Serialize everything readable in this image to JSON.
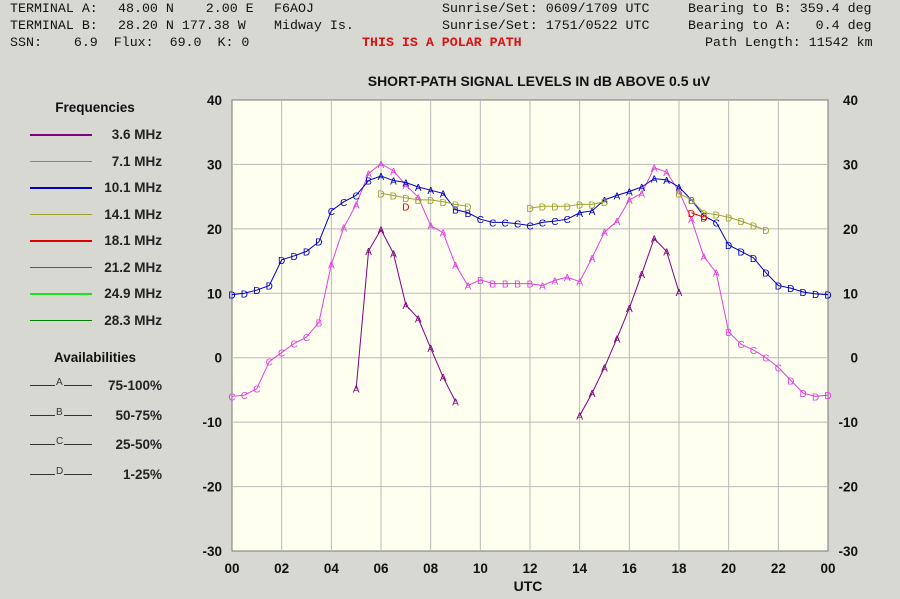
{
  "header": {
    "terminal_a": "TERMINAL A:",
    "terminal_a_coords": "48.00 N    2.00 E",
    "terminal_a_call": "F6AOJ",
    "terminal_a_sun": "Sunrise/Set: 0609/1709 UTC",
    "terminal_a_bearing": "Bearing to B: 359.4 deg",
    "terminal_b": "TERMINAL B:",
    "terminal_b_coords": "28.20 N 177.38 W",
    "terminal_b_name": "Midway Is.",
    "terminal_b_sun": "Sunrise/Set: 1751/0522 UTC",
    "terminal_b_bearing": "Bearing to A:   0.4 deg",
    "ssn": "SSN:    6.9  Flux:  69.0  K: 0",
    "polar_warning": "THIS IS A POLAR PATH",
    "path_length": "Path Length: 11542 km"
  },
  "legend": {
    "frequencies_title": "Frequencies",
    "frequencies": [
      {
        "label": "3.6 MHz",
        "color": "#800080"
      },
      {
        "label": "7.1 MHz",
        "color": "#e040e0"
      },
      {
        "label": "10.1 MHz",
        "color": "#0000c0"
      },
      {
        "label": "14.1 MHz",
        "color": "#a0a030"
      },
      {
        "label": "18.1 MHz",
        "color": "#e00000"
      },
      {
        "label": "21.2 MHz",
        "color": "#008080"
      },
      {
        "label": "24.9 MHz",
        "color": "#20e020"
      },
      {
        "label": "28.3 MHz",
        "color": "#008000"
      }
    ],
    "availabilities_title": "Availabilities",
    "availabilities": [
      {
        "letter": "A",
        "label": "75-100%"
      },
      {
        "letter": "B",
        "label": "50-75%"
      },
      {
        "letter": "C",
        "label": "25-50%"
      },
      {
        "letter": "D",
        "label": "1-25%"
      }
    ]
  },
  "chart_data": {
    "type": "line",
    "title": "SHORT-PATH SIGNAL LEVELS IN dB ABOVE 0.5 uV",
    "xlabel": "UTC",
    "ylabel": "",
    "xlim": [
      0,
      24
    ],
    "ylim": [
      -30,
      40
    ],
    "x_ticks": [
      "00",
      "02",
      "04",
      "06",
      "08",
      "10",
      "12",
      "14",
      "16",
      "18",
      "20",
      "22",
      "00"
    ],
    "y_ticks": [
      40,
      30,
      20,
      10,
      0,
      -10,
      -20,
      -30
    ],
    "grid": true,
    "background": "#fffff0",
    "series": [
      {
        "name": "3.6 MHz",
        "color": "#800080",
        "segments": [
          [
            [
              5.0,
              -4.8,
              "A"
            ],
            [
              5.5,
              16.6,
              "A"
            ],
            [
              6.0,
              19.9,
              "A"
            ],
            [
              6.5,
              16.2,
              "A"
            ],
            [
              7.0,
              8.2,
              "A"
            ],
            [
              7.5,
              6.1,
              "A"
            ],
            [
              8.0,
              1.5,
              "A"
            ],
            [
              8.5,
              -3.0,
              "A"
            ],
            [
              9.0,
              -6.8,
              "A"
            ]
          ],
          [
            [
              14.0,
              -9.0,
              "A"
            ],
            [
              14.5,
              -5.5,
              "A"
            ],
            [
              15.0,
              -1.5,
              "A"
            ],
            [
              15.5,
              3.0,
              "A"
            ],
            [
              16.0,
              7.7,
              "A"
            ],
            [
              16.5,
              13.0,
              "A"
            ],
            [
              17.0,
              18.5,
              "A"
            ],
            [
              17.5,
              16.5,
              "A"
            ],
            [
              18.0,
              10.2,
              "A"
            ]
          ]
        ]
      },
      {
        "name": "7.1 MHz",
        "color": "#e040e0",
        "segments": [
          [
            [
              0.0,
              -6.0,
              "C"
            ],
            [
              0.5,
              -5.8,
              "C"
            ],
            [
              1.0,
              -4.8,
              "C"
            ],
            [
              1.5,
              -0.6,
              "C"
            ],
            [
              2.0,
              0.8,
              "C"
            ],
            [
              2.5,
              2.2,
              "C"
            ],
            [
              3.0,
              3.2,
              "C"
            ],
            [
              3.5,
              5.5,
              "B"
            ],
            [
              4.0,
              14.5,
              "A"
            ],
            [
              4.5,
              20.2,
              "A"
            ],
            [
              5.0,
              23.8,
              "A"
            ],
            [
              5.5,
              28.6,
              "A"
            ],
            [
              6.0,
              30.1,
              "A"
            ],
            [
              6.5,
              29.0,
              "A"
            ],
            [
              7.0,
              26.8,
              "A"
            ],
            [
              7.5,
              24.9,
              "A"
            ],
            [
              8.0,
              20.5,
              "A"
            ],
            [
              8.5,
              19.4,
              "A"
            ],
            [
              9.0,
              14.4,
              "A"
            ],
            [
              9.5,
              11.2,
              "A"
            ],
            [
              10.0,
              12.1,
              "B"
            ],
            [
              10.5,
              11.5,
              "B"
            ],
            [
              11.0,
              11.5,
              "B"
            ],
            [
              11.5,
              11.5,
              "B"
            ],
            [
              12.0,
              11.5,
              "B"
            ],
            [
              12.5,
              11.2,
              "A"
            ],
            [
              13.0,
              12.0,
              "A"
            ],
            [
              13.5,
              12.5,
              "A"
            ],
            [
              14.0,
              11.8,
              "A"
            ],
            [
              14.5,
              15.5,
              "A"
            ],
            [
              15.0,
              19.5,
              "A"
            ],
            [
              15.5,
              21.2,
              "A"
            ],
            [
              16.0,
              24.5,
              "A"
            ],
            [
              16.5,
              25.5,
              "A"
            ],
            [
              17.0,
              29.5,
              "A"
            ],
            [
              17.5,
              28.8,
              "A"
            ],
            [
              18.0,
              25.8,
              "A"
            ],
            [
              18.5,
              21.5,
              "A"
            ],
            [
              19.0,
              15.7,
              "A"
            ],
            [
              19.5,
              13.2,
              "A"
            ],
            [
              20.0,
              4.0,
              "B"
            ],
            [
              20.5,
              2.1,
              "C"
            ],
            [
              21.0,
              1.2,
              "C"
            ],
            [
              21.5,
              0.0,
              "C"
            ],
            [
              22.0,
              -1.5,
              "C"
            ],
            [
              22.5,
              -3.5,
              "D"
            ],
            [
              23.0,
              -5.5,
              "D"
            ],
            [
              23.5,
              -6.0,
              "D"
            ],
            [
              24.0,
              -5.8,
              "D"
            ]
          ]
        ]
      },
      {
        "name": "10.1 MHz",
        "color": "#0000c0",
        "segments": [
          [
            [
              0.0,
              9.8,
              "D"
            ],
            [
              0.5,
              10.0,
              "D"
            ],
            [
              1.0,
              10.5,
              "D"
            ],
            [
              1.5,
              11.2,
              "D"
            ],
            [
              2.0,
              15.2,
              "D"
            ],
            [
              2.5,
              15.8,
              "D"
            ],
            [
              3.0,
              16.5,
              "D"
            ],
            [
              3.5,
              18.0,
              "D"
            ],
            [
              4.0,
              22.8,
              "C"
            ],
            [
              4.5,
              24.2,
              "C"
            ],
            [
              5.0,
              25.2,
              "C"
            ],
            [
              5.5,
              27.5,
              "B"
            ],
            [
              6.0,
              28.2,
              "A"
            ],
            [
              6.5,
              27.5,
              "A"
            ],
            [
              7.0,
              27.2,
              "A"
            ],
            [
              7.5,
              26.5,
              "A"
            ],
            [
              8.0,
              26.0,
              "A"
            ],
            [
              8.5,
              25.5,
              "A"
            ],
            [
              9.0,
              23.0,
              "B"
            ],
            [
              9.5,
              22.5,
              "B"
            ],
            [
              10.0,
              21.5,
              "C"
            ],
            [
              10.5,
              21.0,
              "C"
            ],
            [
              11.0,
              21.0,
              "C"
            ],
            [
              11.5,
              20.8,
              "C"
            ],
            [
              12.0,
              20.5,
              "C"
            ],
            [
              12.5,
              21.0,
              "C"
            ],
            [
              13.0,
              21.2,
              "C"
            ],
            [
              13.5,
              21.5,
              "C"
            ],
            [
              14.0,
              22.5,
              "A"
            ],
            [
              14.5,
              22.8,
              "A"
            ],
            [
              15.0,
              24.5,
              "A"
            ],
            [
              15.5,
              25.2,
              "A"
            ],
            [
              16.0,
              25.8,
              "A"
            ],
            [
              16.5,
              26.5,
              "A"
            ],
            [
              17.0,
              27.8,
              "A"
            ],
            [
              17.5,
              27.6,
              "A"
            ],
            [
              18.0,
              26.5,
              "A"
            ],
            [
              18.5,
              24.5,
              "B"
            ],
            [
              19.0,
              22.0,
              "C"
            ],
            [
              19.5,
              21.0,
              "C"
            ],
            [
              20.0,
              17.5,
              "D"
            ],
            [
              20.5,
              16.5,
              "D"
            ],
            [
              21.0,
              15.5,
              "D"
            ],
            [
              21.5,
              13.2,
              "D"
            ],
            [
              22.0,
              11.2,
              "D"
            ],
            [
              22.5,
              10.8,
              "D"
            ],
            [
              23.0,
              10.2,
              "D"
            ],
            [
              23.5,
              9.9,
              "D"
            ],
            [
              24.0,
              9.8,
              "D"
            ]
          ]
        ]
      },
      {
        "name": "14.1 MHz",
        "color": "#a0a030",
        "segments": [
          [
            [
              6.0,
              25.5,
              "D"
            ],
            [
              6.5,
              25.2,
              "D"
            ],
            [
              7.0,
              24.8,
              "D"
            ],
            [
              7.5,
              24.5,
              "D"
            ],
            [
              8.0,
              24.5,
              "D"
            ],
            [
              8.5,
              24.2,
              "D"
            ],
            [
              9.0,
              23.8,
              "D"
            ],
            [
              9.5,
              23.5,
              "D"
            ]
          ],
          [
            [
              12.0,
              23.2,
              "D"
            ],
            [
              12.5,
              23.5,
              "D"
            ],
            [
              13.0,
              23.5,
              "D"
            ],
            [
              13.5,
              23.5,
              "D"
            ],
            [
              14.0,
              23.8,
              "D"
            ],
            [
              14.5,
              23.8,
              "D"
            ],
            [
              15.0,
              24.2,
              "D"
            ]
          ],
          [
            [
              18.0,
              25.5,
              "D"
            ],
            [
              18.5,
              24.5,
              "D"
            ],
            [
              19.0,
              22.5,
              "D"
            ],
            [
              19.5,
              22.2,
              "D"
            ],
            [
              20.0,
              21.8,
              "D"
            ],
            [
              20.5,
              21.2,
              "D"
            ],
            [
              21.0,
              20.5,
              "D"
            ],
            [
              21.5,
              19.8,
              "D"
            ]
          ]
        ]
      },
      {
        "name": "18.1 MHz",
        "color": "#e00000",
        "segments": [
          [
            [
              7.0,
              23.5,
              "D"
            ]
          ],
          [
            [
              18.5,
              22.5,
              "D"
            ],
            [
              19.0,
              21.8,
              "D"
            ]
          ]
        ]
      }
    ]
  }
}
